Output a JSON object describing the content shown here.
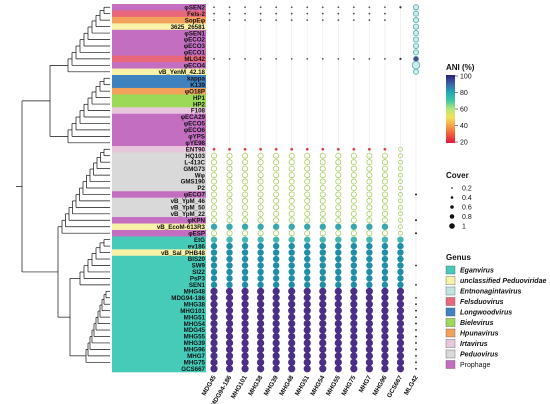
{
  "rows": [
    {
      "label": "φSEN2",
      "genus": "Prophage"
    },
    {
      "label": "Fels-2",
      "genus": "Felsduovirus"
    },
    {
      "label": "SopEφ",
      "genus": "Hpunavirus"
    },
    {
      "label": "3625_26581",
      "genus": "unclassified Peduoviridae"
    },
    {
      "label": "φSEN1",
      "genus": "Prophage"
    },
    {
      "label": "φECO2",
      "genus": "Prophage"
    },
    {
      "label": "φECO3",
      "genus": "Prophage"
    },
    {
      "label": "φECO1",
      "genus": "Prophage"
    },
    {
      "label": "MLG42",
      "genus": "Felsduovirus"
    },
    {
      "label": "φECO4",
      "genus": "Prophage"
    },
    {
      "label": "vB_YenM_42.18",
      "genus": "unclassified Peduoviridae"
    },
    {
      "label": "kappa",
      "genus": "Longwoodvirus"
    },
    {
      "label": "K139",
      "genus": "Longwoodvirus"
    },
    {
      "label": "φO18P",
      "genus": "Hpunavirus"
    },
    {
      "label": "HP1",
      "genus": "Bielevirus"
    },
    {
      "label": "HP2",
      "genus": "Bielevirus"
    },
    {
      "label": "F108",
      "genus": "Irtavirus"
    },
    {
      "label": "φECA29",
      "genus": "Prophage"
    },
    {
      "label": "φECO5",
      "genus": "Prophage"
    },
    {
      "label": "φECO6",
      "genus": "Prophage"
    },
    {
      "label": "φYPS",
      "genus": "Prophage"
    },
    {
      "label": "φYE98",
      "genus": "Prophage"
    },
    {
      "label": "ENT90",
      "genus": "Irtavirus"
    },
    {
      "label": "HQ103",
      "genus": "Peduovirus"
    },
    {
      "label": "L-413C",
      "genus": "Peduovirus"
    },
    {
      "label": "GMG73",
      "genus": "Peduovirus"
    },
    {
      "label": "Wφ",
      "genus": "Peduovirus"
    },
    {
      "label": "GMS190",
      "genus": "Peduovirus"
    },
    {
      "label": "P2",
      "genus": "Peduovirus"
    },
    {
      "label": "φECO7",
      "genus": "Prophage"
    },
    {
      "label": "vB_YpM_46",
      "genus": "Peduovirus"
    },
    {
      "label": "vB_YpM_50",
      "genus": "Peduovirus"
    },
    {
      "label": "vB_YpM_22",
      "genus": "Peduovirus"
    },
    {
      "label": "φKPN",
      "genus": "Prophage"
    },
    {
      "label": "vB_EcoM-613R3",
      "genus": "unclassified Peduoviridae"
    },
    {
      "label": "φESP",
      "genus": "Prophage"
    },
    {
      "label": "EtG",
      "genus": "Eganvirus"
    },
    {
      "label": "ev186",
      "genus": "Eganvirus"
    },
    {
      "label": "vB_Sal_PHB48",
      "genus": "unclassified Peduoviridae"
    },
    {
      "label": "BIS20",
      "genus": "Eganvirus"
    },
    {
      "label": "SW9",
      "genus": "Eganvirus"
    },
    {
      "label": "SI22",
      "genus": "Eganvirus"
    },
    {
      "label": "PsP3",
      "genus": "Eganvirus"
    },
    {
      "label": "SEN1",
      "genus": "Eganvirus"
    },
    {
      "label": "MHG48",
      "genus": "Eganvirus"
    },
    {
      "label": "MDG94-186",
      "genus": "Eganvirus"
    },
    {
      "label": "MHG38",
      "genus": "Eganvirus"
    },
    {
      "label": "MHG101",
      "genus": "Eganvirus"
    },
    {
      "label": "MHG51",
      "genus": "Eganvirus"
    },
    {
      "label": "MHG54",
      "genus": "Eganvirus"
    },
    {
      "label": "MDG45",
      "genus": "Eganvirus"
    },
    {
      "label": "MHG55",
      "genus": "Eganvirus"
    },
    {
      "label": "MHG39",
      "genus": "Eganvirus"
    },
    {
      "label": "MHG96",
      "genus": "Eganvirus"
    },
    {
      "label": "MHG7",
      "genus": "Eganvirus"
    },
    {
      "label": "MHG75",
      "genus": "Eganvirus"
    },
    {
      "label": "GCS667",
      "genus": "Eganvirus"
    }
  ],
  "columns": [
    "MDG45",
    "MDG94-186",
    "MHG101",
    "MHG38",
    "MHG39",
    "MHG48",
    "MHG51",
    "MHG54",
    "MHG55",
    "MHG75",
    "MHG7",
    "MHG96",
    "GCS667",
    "MLG42"
  ],
  "legend_ani": {
    "title": "ANI (%)",
    "ticks": [
      "100",
      "80",
      "60",
      "40",
      "20"
    ],
    "gradient": [
      "#2b1f7a",
      "#3b5ea8",
      "#23a6b7",
      "#3fc7a2",
      "#b6e67a",
      "#f2e25a",
      "#f4a04a",
      "#ef5a3d",
      "#e3173e"
    ]
  },
  "legend_cover": {
    "title": "Cover",
    "items": [
      "0.2",
      "0.4",
      "0.6",
      "0.8",
      "1"
    ]
  },
  "legend_genus": {
    "title": "Genus",
    "items": [
      {
        "name": "Eganvirus",
        "color": "#45cbb8"
      },
      {
        "name": "unclassified Peduoviridae",
        "color": "#f7f2a8"
      },
      {
        "name": "Entnonagintavirus",
        "color": "#bfe5e3"
      },
      {
        "name": "Felsduovirus",
        "color": "#e9677a"
      },
      {
        "name": "Longwoodvirus",
        "color": "#3e82c0"
      },
      {
        "name": "Bielevirus",
        "color": "#9bd957"
      },
      {
        "name": "Hpunavirus",
        "color": "#f3a25b"
      },
      {
        "name": "Irtavirus",
        "color": "#e7c6de"
      },
      {
        "name": "Peduovirus",
        "color": "#d9d9d9"
      },
      {
        "name": "Prophage",
        "color": "#c46ec2"
      }
    ]
  }
}
